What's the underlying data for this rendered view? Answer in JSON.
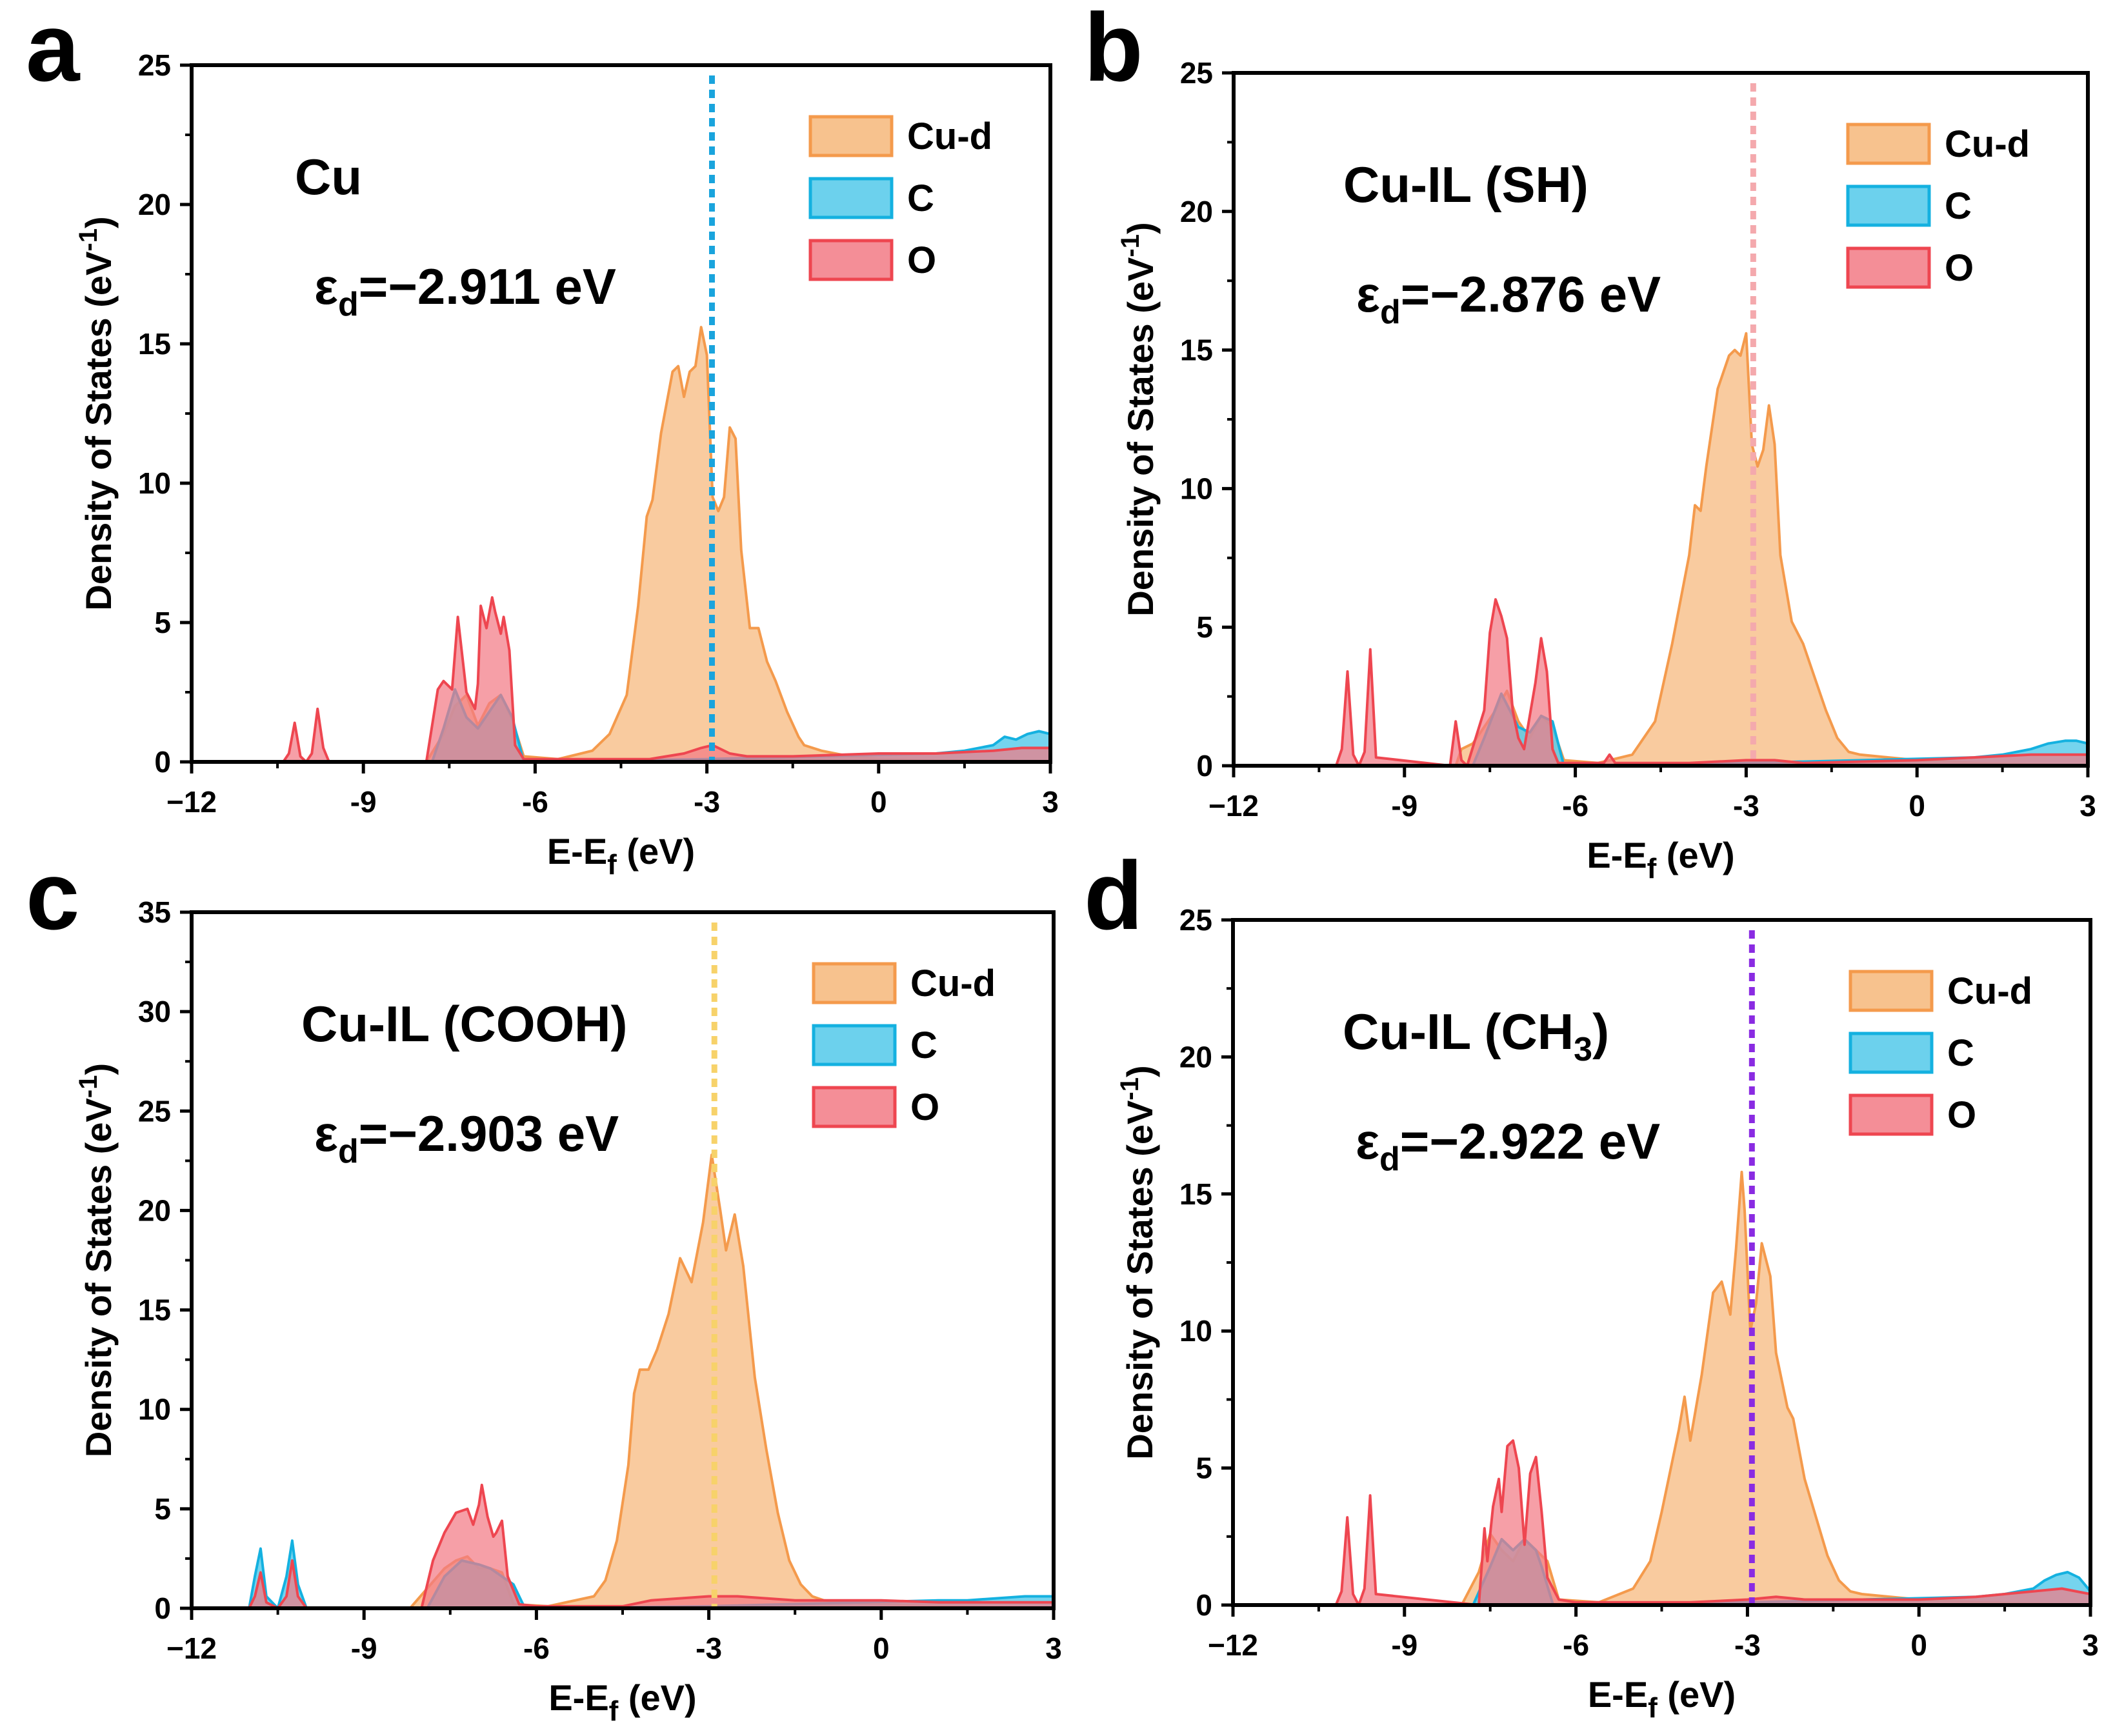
{
  "figure": {
    "legend_labels": [
      "Cu-d",
      "C",
      "O"
    ],
    "colors": {
      "cu_d_fill": "#f6b77a",
      "cu_d_line": "#f49a4c",
      "c_fill": "#52c9ea",
      "c_line": "#14b1e0",
      "o_fill": "#f27a85",
      "o_line": "#ee4650",
      "axis": "#000000"
    }
  },
  "chart_data": [
    {
      "type": "area",
      "panel_label": "a",
      "title": "Cu",
      "title_sub": "",
      "annotation": {
        "symbol": "ε",
        "subscript": "d",
        "text": "=−2.911 eV"
      },
      "xlabel": {
        "main": "E-E",
        "subscript": "f",
        "suffix": " (eV)"
      },
      "ylabel": {
        "main": "Density of States (eV",
        "superscript": "-1",
        "suffix": ")"
      },
      "xlim": [
        -12,
        3
      ],
      "ylim": [
        0,
        25
      ],
      "xticks": [
        -12,
        -9,
        -6,
        -3,
        0,
        3
      ],
      "xtick_labels": [
        "−12",
        "-9",
        "-6",
        "-3",
        "0",
        "3"
      ],
      "yticks": [
        0,
        5,
        10,
        15,
        20,
        25
      ],
      "ytick_labels": [
        "0",
        "5",
        "10",
        "15",
        "20",
        "25"
      ],
      "d_band_center": -2.911,
      "center_line_color": "#1aa4dd",
      "series": [
        {
          "name": "Cu-d",
          "x": [
            -12,
            -7.9,
            -7.6,
            -7.4,
            -7.2,
            -7.0,
            -6.8,
            -6.6,
            -6.4,
            -6.2,
            -5.6,
            -5.0,
            -4.7,
            -4.4,
            -4.2,
            -4.05,
            -3.95,
            -3.8,
            -3.6,
            -3.5,
            -3.4,
            -3.3,
            -3.2,
            -3.1,
            -3.0,
            -2.9,
            -2.8,
            -2.7,
            -2.6,
            -2.5,
            -2.4,
            -2.25,
            -2.1,
            -1.95,
            -1.8,
            -1.6,
            -1.4,
            -1.3,
            -1.0,
            -0.5,
            0,
            1,
            2,
            3
          ],
          "y": [
            0,
            0,
            1.0,
            2.0,
            2.4,
            1.3,
            2.1,
            2.4,
            1.5,
            0.2,
            0.1,
            0.4,
            1.0,
            2.4,
            5.6,
            8.8,
            9.4,
            11.8,
            14.0,
            14.2,
            13.1,
            14.0,
            14.2,
            15.6,
            14.6,
            9.5,
            9.0,
            9.5,
            12.0,
            11.6,
            7.6,
            4.8,
            4.8,
            3.6,
            2.9,
            1.8,
            0.9,
            0.6,
            0.4,
            0.2,
            0.1,
            0.05,
            0.05,
            0
          ]
        },
        {
          "name": "C",
          "x": [
            -12,
            -7.8,
            -7.6,
            -7.4,
            -7.2,
            -7.0,
            -6.8,
            -6.6,
            -6.4,
            -6.2,
            -3,
            1,
            1.5,
            2,
            2.2,
            2.4,
            2.6,
            2.8,
            3
          ],
          "y": [
            0,
            0,
            1.2,
            2.6,
            1.6,
            1.2,
            1.8,
            2.4,
            1.6,
            0,
            0.1,
            0.3,
            0.4,
            0.6,
            0.9,
            0.8,
            1.0,
            1.1,
            1.0
          ]
        },
        {
          "name": "O",
          "x": [
            -12,
            -10.4,
            -10.3,
            -10.2,
            -10.1,
            -10.0,
            -9.9,
            -9.8,
            -9.7,
            -9.6,
            -7.9,
            -7.7,
            -7.6,
            -7.45,
            -7.35,
            -7.2,
            -7.05,
            -7.0,
            -6.95,
            -6.85,
            -6.75,
            -6.7,
            -6.6,
            -6.55,
            -6.45,
            -6.35,
            -6.2,
            -5.8,
            -4,
            -3.4,
            -3.1,
            -2.9,
            -2.6,
            -2.3,
            -1.5,
            0,
            1,
            2,
            2.5,
            3
          ],
          "y": [
            0,
            0,
            0.3,
            1.4,
            0.2,
            0,
            0.3,
            1.9,
            0.5,
            0,
            0,
            2.6,
            2.9,
            2.6,
            5.2,
            2.5,
            1.9,
            2.8,
            5.6,
            4.8,
            5.9,
            5.4,
            4.6,
            5.2,
            4.0,
            0.6,
            0.1,
            0.1,
            0.1,
            0.3,
            0.5,
            0.6,
            0.3,
            0.2,
            0.2,
            0.3,
            0.3,
            0.4,
            0.5,
            0.5
          ]
        }
      ]
    },
    {
      "type": "area",
      "panel_label": "b",
      "title": "Cu-IL (SH)",
      "title_sub": "",
      "annotation": {
        "symbol": "ε",
        "subscript": "d",
        "text": "=−2.876 eV"
      },
      "xlabel": {
        "main": "E-E",
        "subscript": "f",
        "suffix": " (eV)"
      },
      "ylabel": {
        "main": "Density of States (eV",
        "superscript": "-1",
        "suffix": ")"
      },
      "xlim": [
        -12,
        3
      ],
      "ylim": [
        0,
        25
      ],
      "xticks": [
        -12,
        -9,
        -6,
        -3,
        0,
        3
      ],
      "xtick_labels": [
        "−12",
        "-9",
        "-6",
        "-3",
        "0",
        "3"
      ],
      "yticks": [
        0,
        5,
        10,
        15,
        20,
        25
      ],
      "ytick_labels": [
        "0",
        "5",
        "10",
        "15",
        "20",
        "25"
      ],
      "d_band_center": -2.876,
      "center_line_color": "#f4a9ad",
      "series": [
        {
          "name": "Cu-d",
          "x": [
            -12,
            -8.1,
            -8.0,
            -7.8,
            -7.6,
            -7.4,
            -7.2,
            -7.0,
            -6.8,
            -6.6,
            -6.4,
            -6.2,
            -5.6,
            -5.0,
            -4.6,
            -4.3,
            -4.0,
            -3.9,
            -3.8,
            -3.7,
            -3.5,
            -3.3,
            -3.2,
            -3.1,
            -3.0,
            -2.9,
            -2.8,
            -2.7,
            -2.6,
            -2.5,
            -2.4,
            -2.2,
            -2.0,
            -1.8,
            -1.6,
            -1.4,
            -1.2,
            -1.0,
            0,
            1,
            2,
            3
          ],
          "y": [
            0,
            0,
            0.6,
            0.8,
            1.4,
            2.0,
            2.7,
            1.6,
            1.0,
            1.8,
            1.4,
            0.2,
            0.1,
            0.4,
            1.6,
            4.4,
            7.6,
            9.4,
            9.2,
            10.8,
            13.6,
            14.8,
            15.0,
            14.8,
            15.6,
            11.6,
            10.8,
            11.4,
            13.0,
            11.6,
            7.6,
            5.2,
            4.4,
            3.2,
            2.0,
            1.0,
            0.5,
            0.4,
            0.2,
            0.1,
            0.05,
            0
          ]
        },
        {
          "name": "C",
          "x": [
            -12,
            -7.8,
            -7.6,
            -7.3,
            -7.0,
            -6.8,
            -6.6,
            -6.4,
            -6.2,
            -3,
            1,
            1.5,
            2,
            2.3,
            2.6,
            2.8,
            3
          ],
          "y": [
            0,
            0,
            1.0,
            2.6,
            1.4,
            1.2,
            1.8,
            1.6,
            0,
            0.1,
            0.3,
            0.4,
            0.6,
            0.8,
            0.9,
            0.9,
            0.8
          ]
        },
        {
          "name": "O",
          "x": [
            -12,
            -10.2,
            -10.1,
            -10.0,
            -9.9,
            -9.8,
            -9.7,
            -9.6,
            -9.5,
            -8.2,
            -8.1,
            -8.0,
            -7.9,
            -7.6,
            -7.5,
            -7.4,
            -7.3,
            -7.2,
            -7.1,
            -7.0,
            -6.9,
            -6.7,
            -6.6,
            -6.5,
            -6.4,
            -6.3,
            -6.0,
            -5.5,
            -5.4,
            -5.3,
            -4,
            -3,
            -2.5,
            -2,
            0,
            1,
            2,
            3
          ],
          "y": [
            0,
            0,
            0.6,
            3.4,
            0.4,
            0,
            0.5,
            4.2,
            0.3,
            0,
            1.6,
            0.2,
            0,
            2.0,
            4.8,
            6.0,
            5.4,
            4.6,
            2.0,
            1.0,
            0.6,
            3.0,
            4.6,
            3.4,
            0.6,
            0.1,
            0.1,
            0.1,
            0.4,
            0.1,
            0.1,
            0.2,
            0.2,
            0.1,
            0.2,
            0.3,
            0.4,
            0.4
          ]
        }
      ]
    },
    {
      "type": "area",
      "panel_label": "c",
      "title": "Cu-IL (COOH)",
      "title_sub": "",
      "annotation": {
        "symbol": "ε",
        "subscript": "d",
        "text": "=−2.903 eV"
      },
      "xlabel": {
        "main": "E-E",
        "subscript": "f",
        "suffix": " (eV)"
      },
      "ylabel": {
        "main": "Density of States (eV",
        "superscript": "-1",
        "suffix": ")"
      },
      "xlim": [
        -12,
        3
      ],
      "ylim": [
        0,
        35
      ],
      "xticks": [
        -12,
        -9,
        -6,
        -3,
        0,
        3
      ],
      "xtick_labels": [
        "−12",
        "-9",
        "-6",
        "-3",
        "0",
        "3"
      ],
      "yticks": [
        0,
        5,
        10,
        15,
        20,
        25,
        30,
        35
      ],
      "ytick_labels": [
        "0",
        "5",
        "10",
        "15",
        "20",
        "25",
        "30",
        "35"
      ],
      "d_band_center": -2.903,
      "center_line_color": "#f7d26a",
      "series": [
        {
          "name": "Cu-d",
          "x": [
            -12,
            -8.2,
            -7.9,
            -7.6,
            -7.4,
            -7.2,
            -7.0,
            -6.8,
            -6.6,
            -6.4,
            -5.8,
            -5.0,
            -4.8,
            -4.6,
            -4.4,
            -4.3,
            -4.2,
            -4.05,
            -3.9,
            -3.7,
            -3.5,
            -3.3,
            -3.1,
            -2.95,
            -2.8,
            -2.7,
            -2.55,
            -2.4,
            -2.2,
            -2.0,
            -1.8,
            -1.6,
            -1.4,
            -1.2,
            -1.0,
            0,
            1,
            2,
            3
          ],
          "y": [
            0,
            0,
            1.0,
            2.0,
            2.4,
            2.6,
            2.0,
            2.0,
            1.8,
            0.2,
            0.1,
            0.6,
            1.4,
            3.4,
            7.2,
            10.8,
            12.0,
            12.0,
            13.0,
            14.8,
            17.6,
            16.4,
            19.4,
            22.8,
            20.0,
            18.0,
            19.8,
            17.2,
            11.6,
            8.0,
            4.8,
            2.4,
            1.2,
            0.6,
            0.4,
            0.2,
            0.1,
            0.05,
            0
          ]
        },
        {
          "name": "C",
          "x": [
            -12,
            -11.0,
            -10.9,
            -10.8,
            -10.7,
            -10.5,
            -10.35,
            -10.25,
            -10.15,
            -10.0,
            -7.9,
            -7.6,
            -7.3,
            -7.0,
            -6.8,
            -6.6,
            -6.4,
            -6.2,
            -3,
            1,
            1.5,
            2,
            2.5,
            3
          ],
          "y": [
            0,
            0,
            1.6,
            3.0,
            0.6,
            0,
            1.6,
            3.4,
            1.2,
            0,
            0,
            1.6,
            2.4,
            2.2,
            2.0,
            1.6,
            1.2,
            0,
            0.1,
            0.4,
            0.4,
            0.5,
            0.6,
            0.6
          ]
        },
        {
          "name": "O",
          "x": [
            -12,
            -11.0,
            -10.9,
            -10.8,
            -10.7,
            -10.5,
            -10.35,
            -10.25,
            -10.15,
            -10.0,
            -8.0,
            -7.8,
            -7.6,
            -7.4,
            -7.2,
            -7.1,
            -7.0,
            -6.95,
            -6.85,
            -6.75,
            -6.7,
            -6.6,
            -6.5,
            -6.3,
            -6.0,
            -4.5,
            -4,
            -3.5,
            -3,
            -2.5,
            -2,
            -1.5,
            -1,
            0,
            1,
            2,
            3
          ],
          "y": [
            0,
            0,
            0.6,
            1.8,
            0.3,
            0,
            0.6,
            2.4,
            0.6,
            0,
            0,
            2.4,
            3.8,
            4.8,
            5.0,
            4.2,
            5.2,
            6.2,
            4.6,
            3.6,
            3.8,
            4.4,
            1.6,
            0.2,
            0.1,
            0.1,
            0.4,
            0.5,
            0.6,
            0.6,
            0.5,
            0.4,
            0.4,
            0.4,
            0.3,
            0.3,
            0.3
          ]
        }
      ]
    },
    {
      "type": "area",
      "panel_label": "d",
      "title": "Cu-IL (CH",
      "title_sub": "3",
      "annotation": {
        "symbol": "ε",
        "subscript": "d",
        "text": "=−2.922 eV"
      },
      "xlabel": {
        "main": "E-E",
        "subscript": "f",
        "suffix": " (eV)"
      },
      "ylabel": {
        "main": "Density of States (eV",
        "superscript": "-1",
        "suffix": ")"
      },
      "xlim": [
        -12,
        3
      ],
      "ylim": [
        0,
        25
      ],
      "xticks": [
        -12,
        -9,
        -6,
        -3,
        0,
        3
      ],
      "xtick_labels": [
        "−12",
        "-9",
        "-6",
        "-3",
        "0",
        "3"
      ],
      "yticks": [
        0,
        5,
        10,
        15,
        20,
        25
      ],
      "ytick_labels": [
        "0",
        "5",
        "10",
        "15",
        "20",
        "25"
      ],
      "d_band_center": -2.922,
      "center_line_color": "#8a2be2",
      "series": [
        {
          "name": "Cu-d",
          "x": [
            -12,
            -8.0,
            -7.7,
            -7.5,
            -7.3,
            -7.1,
            -6.9,
            -6.7,
            -6.5,
            -6.3,
            -5.6,
            -5.0,
            -4.7,
            -4.5,
            -4.2,
            -4.1,
            -4.0,
            -3.8,
            -3.6,
            -3.45,
            -3.3,
            -3.2,
            -3.1,
            -3.05,
            -2.95,
            -2.85,
            -2.75,
            -2.6,
            -2.5,
            -2.3,
            -2.2,
            -2.0,
            -1.8,
            -1.6,
            -1.4,
            -1.2,
            -1.0,
            0,
            1,
            2,
            3
          ],
          "y": [
            0,
            0,
            1.2,
            2.6,
            2.0,
            1.6,
            2.4,
            2.0,
            1.6,
            0.2,
            0.1,
            0.6,
            1.6,
            3.4,
            6.4,
            7.6,
            6.0,
            8.4,
            11.4,
            11.8,
            10.6,
            13.0,
            15.8,
            14.4,
            10.0,
            11.0,
            13.2,
            12.0,
            9.2,
            7.2,
            6.8,
            4.6,
            3.2,
            1.8,
            0.9,
            0.5,
            0.4,
            0.2,
            0.1,
            0.05,
            0
          ]
        },
        {
          "name": "C",
          "x": [
            -12,
            -7.8,
            -7.5,
            -7.3,
            -7.1,
            -6.9,
            -6.7,
            -6.6,
            -6.4,
            -3,
            1,
            1.5,
            2,
            2.2,
            2.4,
            2.6,
            2.8,
            3
          ],
          "y": [
            0,
            0,
            1.4,
            2.4,
            2.0,
            2.4,
            2.0,
            1.4,
            0,
            0.1,
            0.3,
            0.4,
            0.6,
            0.9,
            1.1,
            1.2,
            1.0,
            0.5
          ]
        },
        {
          "name": "O",
          "x": [
            -12,
            -10.2,
            -10.1,
            -10.0,
            -9.9,
            -9.8,
            -9.7,
            -9.6,
            -9.5,
            -7.7,
            -7.6,
            -7.55,
            -7.45,
            -7.35,
            -7.3,
            -7.2,
            -7.1,
            -7.0,
            -6.9,
            -6.8,
            -6.7,
            -6.6,
            -6.5,
            -6.3,
            -6.0,
            -4,
            -3,
            -2.5,
            -2,
            0,
            1,
            2,
            2.5,
            3
          ],
          "y": [
            0,
            0,
            0.5,
            3.2,
            0.4,
            0,
            0.6,
            4.0,
            0.4,
            0,
            2.8,
            1.6,
            3.6,
            4.6,
            3.4,
            5.8,
            6.0,
            5.0,
            2.2,
            4.8,
            5.4,
            3.4,
            1.0,
            0.2,
            0.1,
            0.1,
            0.2,
            0.3,
            0.2,
            0.2,
            0.3,
            0.5,
            0.6,
            0.4
          ]
        }
      ]
    }
  ]
}
